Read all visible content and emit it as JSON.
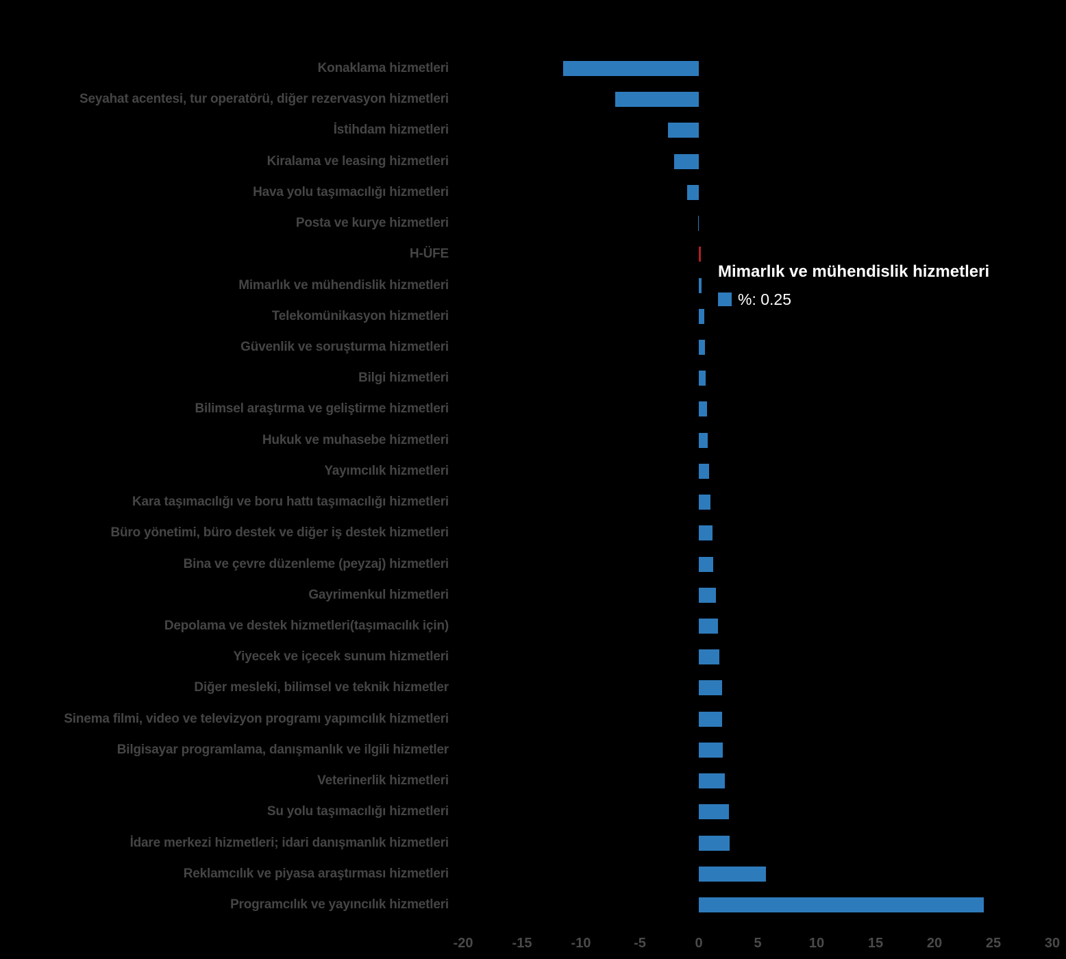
{
  "chart_data": {
    "type": "bar",
    "orientation": "horizontal",
    "title": "",
    "xlabel": "",
    "ylabel": "",
    "unit": "%",
    "xlim": [
      -20,
      30
    ],
    "x_ticks": [
      -20,
      -15,
      -10,
      -5,
      0,
      5,
      10,
      15,
      20,
      25,
      30
    ],
    "x_tick_labels": [
      "-20",
      "-15",
      "-10",
      "-5",
      "0",
      "5",
      "10",
      "15",
      "20",
      "25",
      "30"
    ],
    "grid": false,
    "legend_position": "none",
    "categories": [
      "Konaklama hizmetleri",
      "Seyahat acentesi, tur operatörü, diğer rezervasyon hizmetleri",
      "İstihdam hizmetleri",
      "Kiralama ve leasing hizmetleri",
      "Hava yolu taşımacılığı hizmetleri",
      "Posta ve kurye hizmetleri",
      "H-ÜFE",
      "Mimarlık ve mühendislik hizmetleri",
      "Telekomünikasyon hizmetleri",
      "Güvenlik ve soruşturma hizmetleri",
      "Bilgi hizmetleri",
      "Bilimsel araştırma ve geliştirme hizmetleri",
      "Hukuk ve muhasebe hizmetleri",
      "Yayımcılık hizmetleri",
      "Kara taşımacılığı ve boru hattı taşımacılığı hizmetleri",
      "Büro yönetimi, büro destek ve diğer iş destek hizmetleri",
      "Bina ve çevre düzenleme (peyzaj) hizmetleri",
      "Gayrimenkul hizmetleri",
      "Depolama ve destek hizmetleri(taşımacılık için)",
      "Yiyecek ve içecek sunum hizmetleri",
      "Diğer mesleki, bilimsel ve teknik hizmetler",
      "Sinema filmi, video ve televizyon programı yapımcılık hizmetleri",
      "Bilgisayar programlama, danışmanlık ve ilgili hizmetler",
      "Veterinerlik hizmetleri",
      "Su yolu taşımacılığı hizmetleri",
      "İdare merkezi hizmetleri; idari danışmanlık hizmetleri",
      "Reklamcılık ve piyasa araştırması hizmetleri",
      "Programcılık ve yayıncılık hizmetleri"
    ],
    "values": [
      -11.5,
      -7.1,
      -2.6,
      -2.1,
      -1.0,
      -0.05,
      0.2,
      0.25,
      0.45,
      0.5,
      0.6,
      0.7,
      0.75,
      0.9,
      1.0,
      1.15,
      1.2,
      1.45,
      1.6,
      1.75,
      1.95,
      2.0,
      2.05,
      2.2,
      2.55,
      2.6,
      5.7,
      24.2
    ],
    "highlighted_category": "H-ÜFE",
    "highlighted_index": 6,
    "tooltip": {
      "category": "Mimarlık ve mühendislik hizmetleri",
      "text": "%: 0.25",
      "value": 0.25
    }
  },
  "style": {
    "bar_color": "#2E7BBC",
    "highlight_bar_color": "#B21F24",
    "label_color": "#454545",
    "axis_label_color": "#4A4A4A",
    "tooltip_text_color": "#FFFFFF",
    "background_color": "#000000"
  }
}
